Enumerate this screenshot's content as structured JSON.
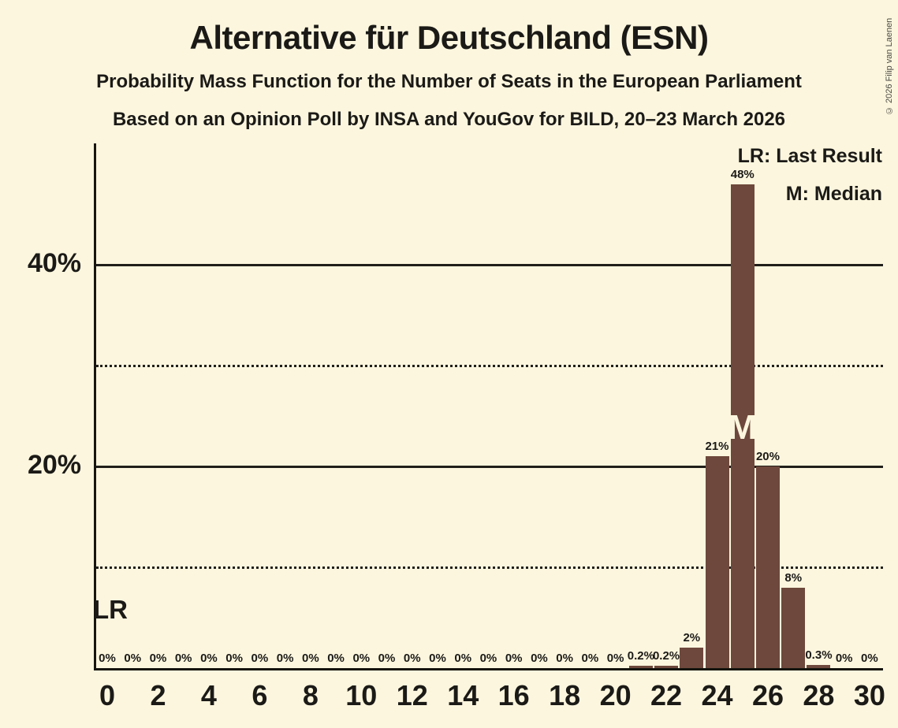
{
  "chart_data": {
    "type": "bar",
    "title": "Alternative für Deutschland (ESN)",
    "subtitle": "Probability Mass Function for the Number of Seats in the European Parliament",
    "source_line": "Based on an Opinion Poll by INSA and YouGov for BILD, 20–23 March 2026",
    "copyright": "© 2026 Filip van Laenen",
    "legend": {
      "lr": "LR: Last Result",
      "m": "M: Median"
    },
    "x": [
      0,
      1,
      2,
      3,
      4,
      5,
      6,
      7,
      8,
      9,
      10,
      11,
      12,
      13,
      14,
      15,
      16,
      17,
      18,
      19,
      20,
      21,
      22,
      23,
      24,
      25,
      26,
      27,
      28,
      29,
      30
    ],
    "values": [
      0,
      0,
      0,
      0,
      0,
      0,
      0,
      0,
      0,
      0,
      0,
      0,
      0,
      0,
      0,
      0,
      0,
      0,
      0,
      0,
      0,
      0.2,
      0.2,
      2,
      21,
      48,
      20,
      8,
      0.3,
      0,
      0
    ],
    "bar_labels": [
      "0%",
      "0%",
      "0%",
      "0%",
      "0%",
      "0%",
      "0%",
      "0%",
      "0%",
      "0%",
      "0%",
      "0%",
      "0%",
      "0%",
      "0%",
      "0%",
      "0%",
      "0%",
      "0%",
      "0%",
      "0%",
      "0.2%",
      "0.2%",
      "2%",
      "21%",
      "48%",
      "20%",
      "8%",
      "0.3%",
      "0%",
      "0%"
    ],
    "x_ticks": [
      0,
      2,
      4,
      6,
      8,
      10,
      12,
      14,
      16,
      18,
      20,
      22,
      24,
      26,
      28,
      30
    ],
    "ylim": [
      0,
      52
    ],
    "y_ticks": [
      {
        "pct": 20,
        "label": "20%"
      },
      {
        "pct": 40,
        "label": "40%"
      }
    ],
    "gridlines": {
      "solid_pct": [
        20,
        40
      ],
      "dotted_pct": [
        10,
        30
      ]
    },
    "annotations": {
      "last_result_label": "LR",
      "last_result_seat": 0,
      "median_label": "M",
      "median_seat": 25
    },
    "colors": {
      "background": "#FCF6DE",
      "bar": "#6E483C",
      "text": "#1B1A17",
      "median_letter": "#FCF6DE",
      "copyright": "#4B4A44"
    }
  }
}
